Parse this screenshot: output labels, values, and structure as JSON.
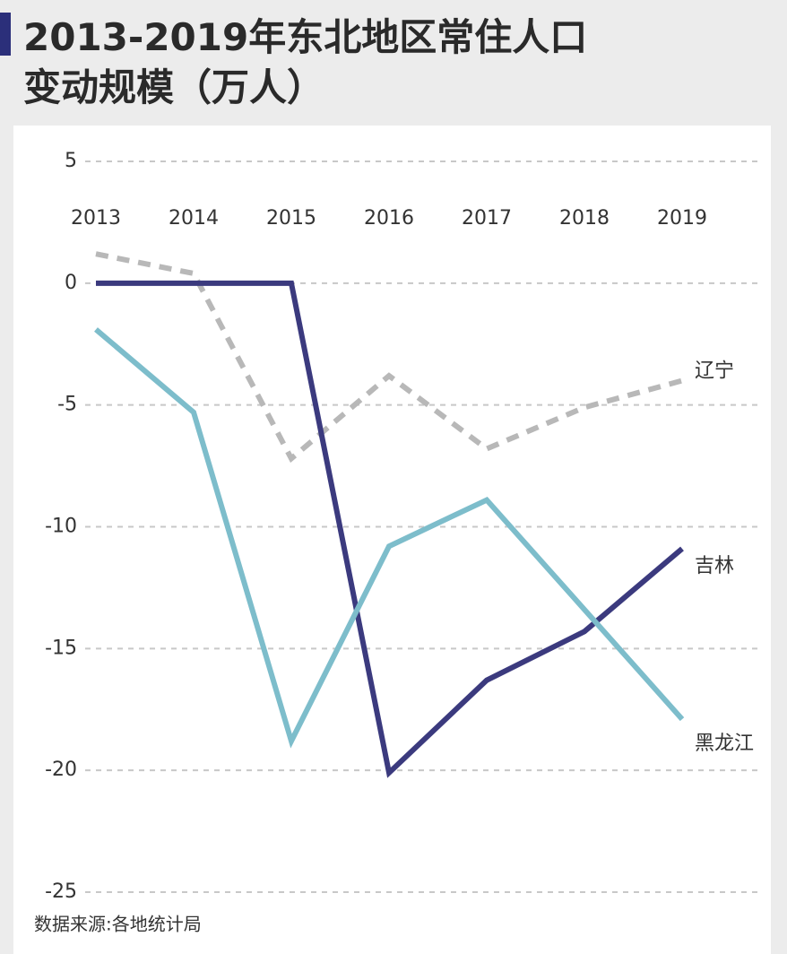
{
  "chart_data": {
    "type": "line",
    "title": [
      "2013-2019年东北地区常住人口",
      "变动规模（万人）"
    ],
    "categories": [
      "2013",
      "2014",
      "2015",
      "2016",
      "2017",
      "2018",
      "2019"
    ],
    "series": [
      {
        "name": "辽宁",
        "color": "#b8b8b8",
        "dashed": true,
        "values": [
          1.2,
          0.4,
          -7.2,
          -3.8,
          -6.8,
          -5.1,
          -4.0
        ]
      },
      {
        "name": "吉林",
        "color": "#3b3a7e",
        "dashed": false,
        "values": [
          0,
          0,
          0,
          -20.1,
          -16.3,
          -14.3,
          -10.9
        ]
      },
      {
        "name": "黑龙江",
        "color": "#7dbdcb",
        "dashed": false,
        "values": [
          -1.9,
          -5.3,
          -18.8,
          -10.8,
          -8.9,
          -13.4,
          -17.9
        ]
      }
    ],
    "ylim": [
      -25,
      5
    ],
    "yticks": [
      5,
      0,
      -5,
      -10,
      -15,
      -20,
      -25
    ],
    "grid": true,
    "note": "数据来源:各地统计局"
  }
}
